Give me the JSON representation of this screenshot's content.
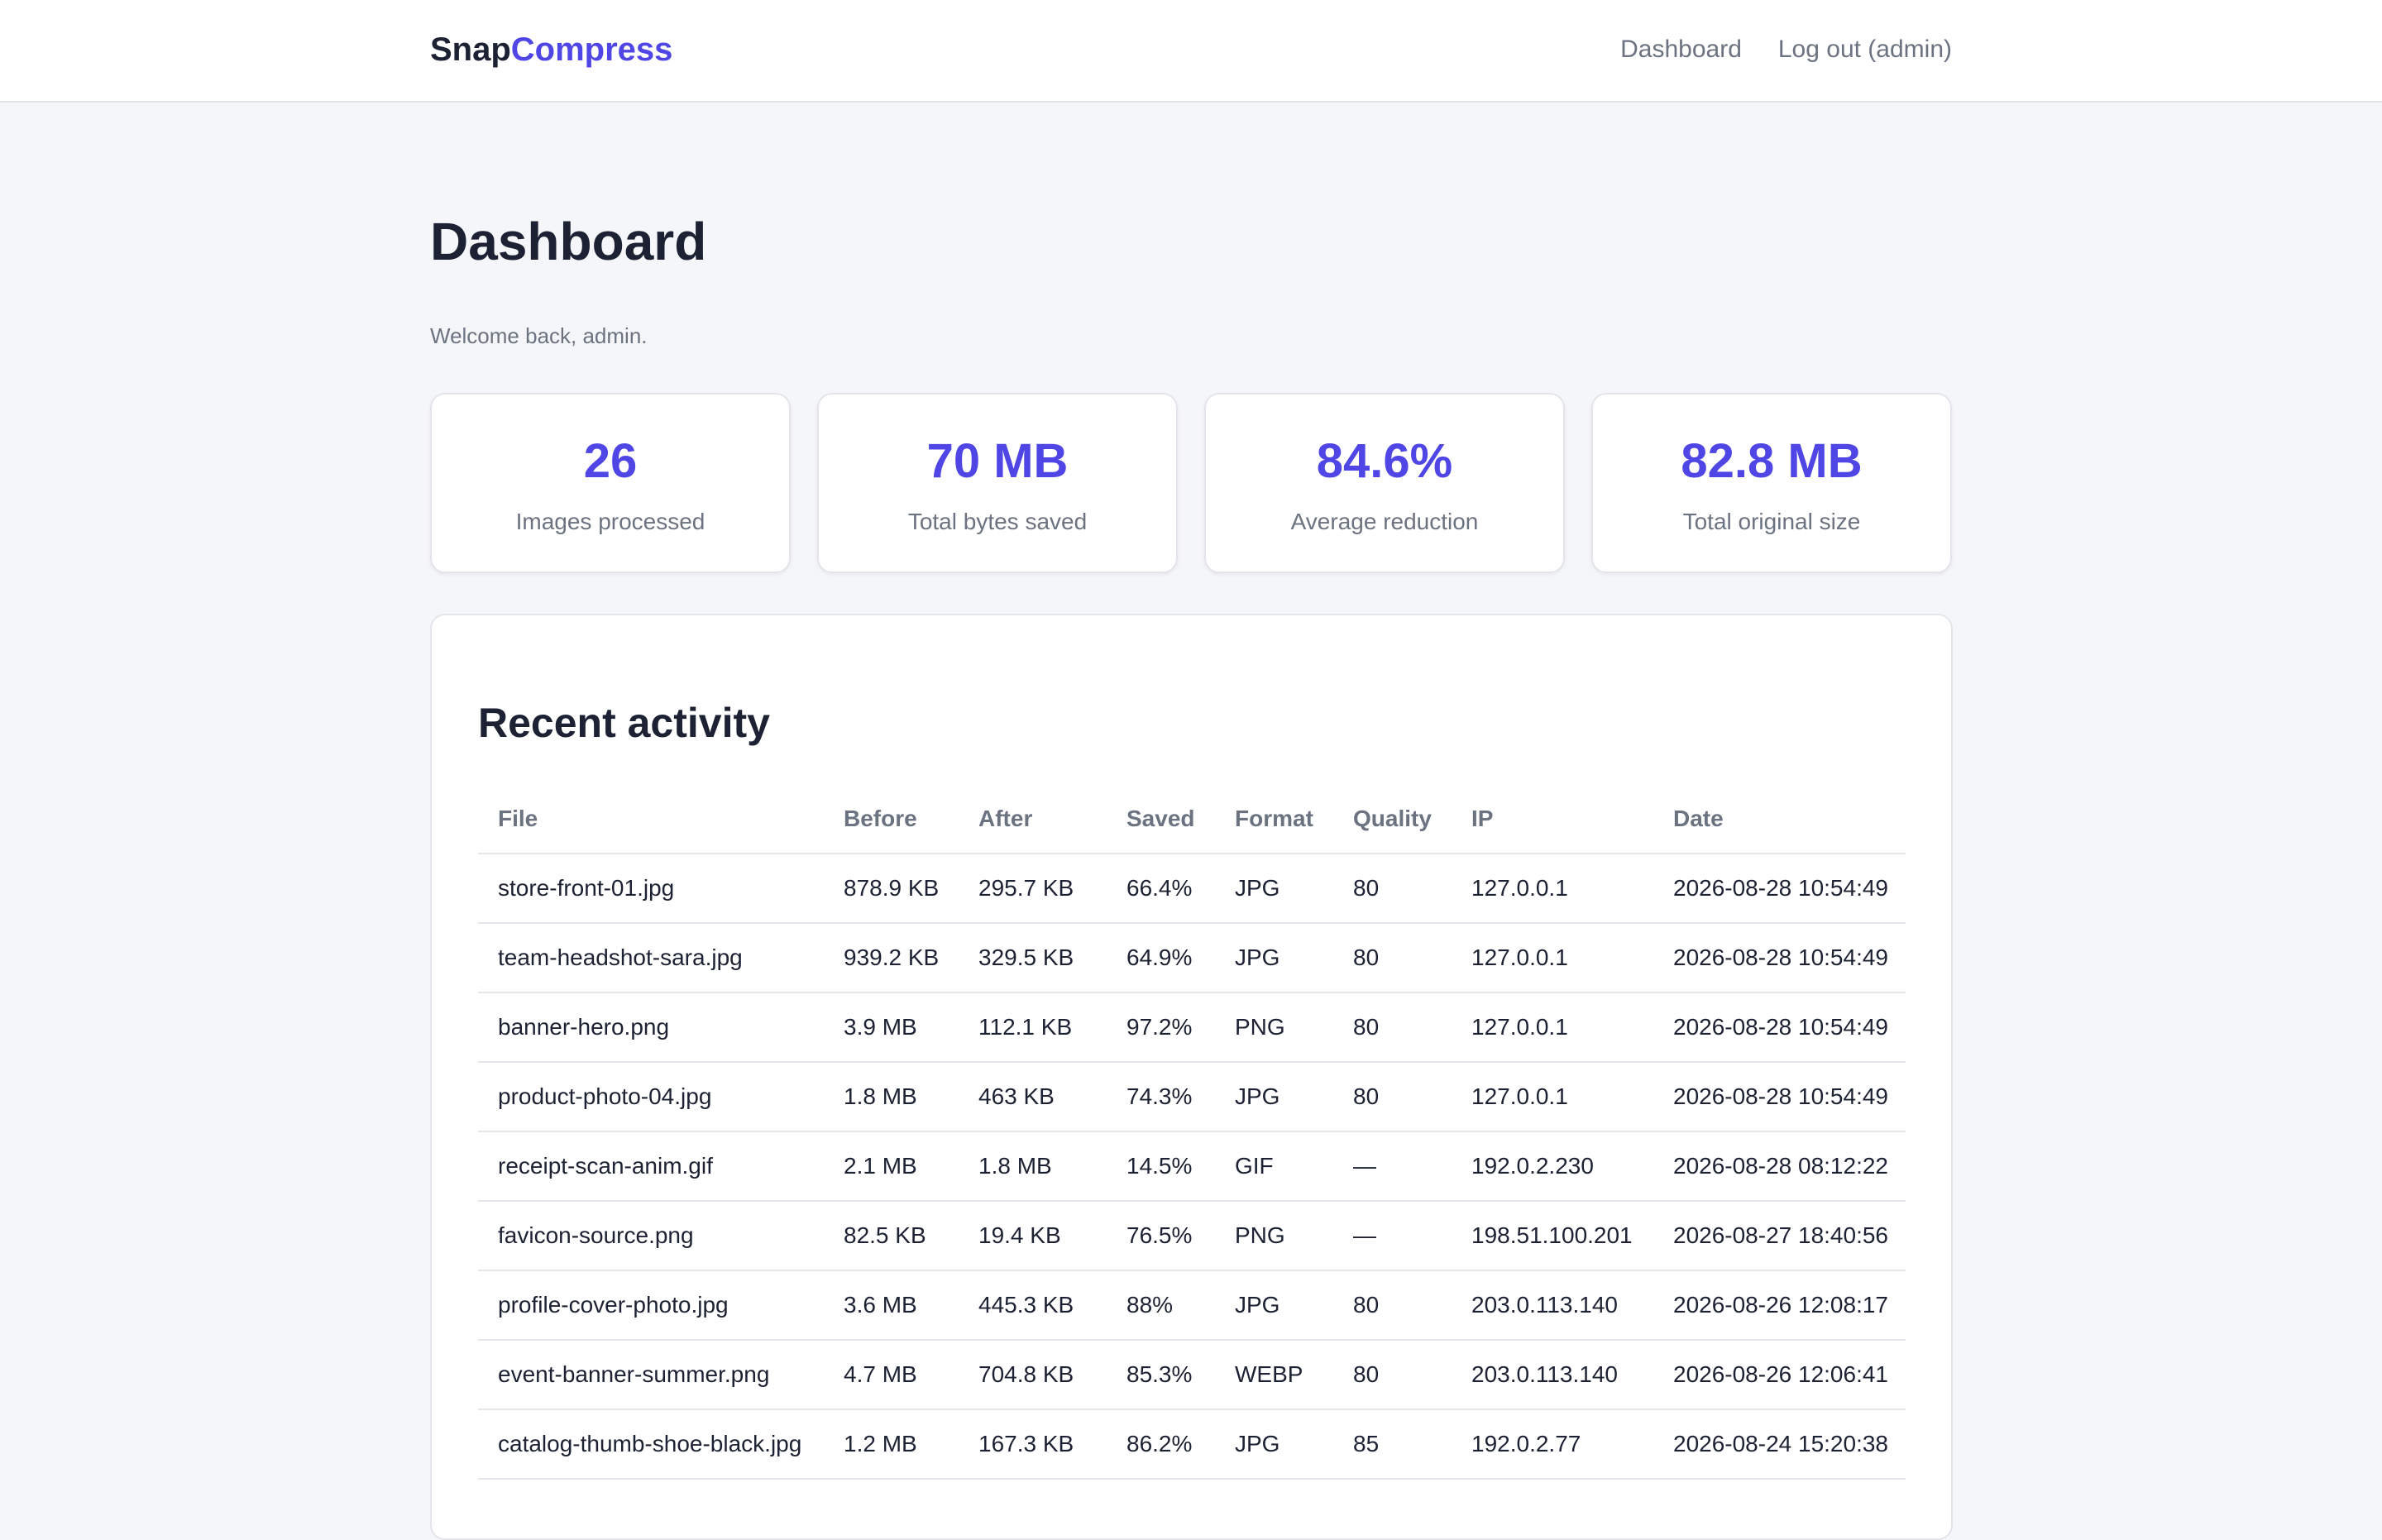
{
  "brand": {
    "part1": "Snap",
    "part2": "Compress"
  },
  "nav": {
    "dashboard": "Dashboard",
    "logout": "Log out (admin)"
  },
  "page": {
    "title": "Dashboard",
    "welcome": "Welcome back, admin."
  },
  "stats": [
    {
      "value": "26",
      "label": "Images processed"
    },
    {
      "value": "70 MB",
      "label": "Total bytes saved"
    },
    {
      "value": "84.6%",
      "label": "Average reduction"
    },
    {
      "value": "82.8 MB",
      "label": "Total original size"
    }
  ],
  "activity": {
    "title": "Recent activity",
    "columns": [
      "File",
      "Before",
      "After",
      "Saved",
      "Format",
      "Quality",
      "IP",
      "Date"
    ],
    "rows": [
      [
        "store-front-01.jpg",
        "878.9 KB",
        "295.7 KB",
        "66.4%",
        "JPG",
        "80",
        "127.0.0.1",
        "2026-08-28 10:54:49"
      ],
      [
        "team-headshot-sara.jpg",
        "939.2 KB",
        "329.5 KB",
        "64.9%",
        "JPG",
        "80",
        "127.0.0.1",
        "2026-08-28 10:54:49"
      ],
      [
        "banner-hero.png",
        "3.9 MB",
        "112.1 KB",
        "97.2%",
        "PNG",
        "80",
        "127.0.0.1",
        "2026-08-28 10:54:49"
      ],
      [
        "product-photo-04.jpg",
        "1.8 MB",
        "463 KB",
        "74.3%",
        "JPG",
        "80",
        "127.0.0.1",
        "2026-08-28 10:54:49"
      ],
      [
        "receipt-scan-anim.gif",
        "2.1 MB",
        "1.8 MB",
        "14.5%",
        "GIF",
        "—",
        "192.0.2.230",
        "2026-08-28 08:12:22"
      ],
      [
        "favicon-source.png",
        "82.5 KB",
        "19.4 KB",
        "76.5%",
        "PNG",
        "—",
        "198.51.100.201",
        "2026-08-27 18:40:56"
      ],
      [
        "profile-cover-photo.jpg",
        "3.6 MB",
        "445.3 KB",
        "88%",
        "JPG",
        "80",
        "203.0.113.140",
        "2026-08-26 12:08:17"
      ],
      [
        "event-banner-summer.png",
        "4.7 MB",
        "704.8 KB",
        "85.3%",
        "WEBP",
        "80",
        "203.0.113.140",
        "2026-08-26 12:06:41"
      ],
      [
        "catalog-thumb-shoe-black.jpg",
        "1.2 MB",
        "167.3 KB",
        "86.2%",
        "JPG",
        "85",
        "192.0.2.77",
        "2026-08-24 15:20:38"
      ]
    ]
  },
  "colors": {
    "accent": "#4f46e5",
    "text": "#1c2233",
    "muted": "#6b7280",
    "background": "#f5f6f9",
    "border": "#e3e5ea"
  }
}
